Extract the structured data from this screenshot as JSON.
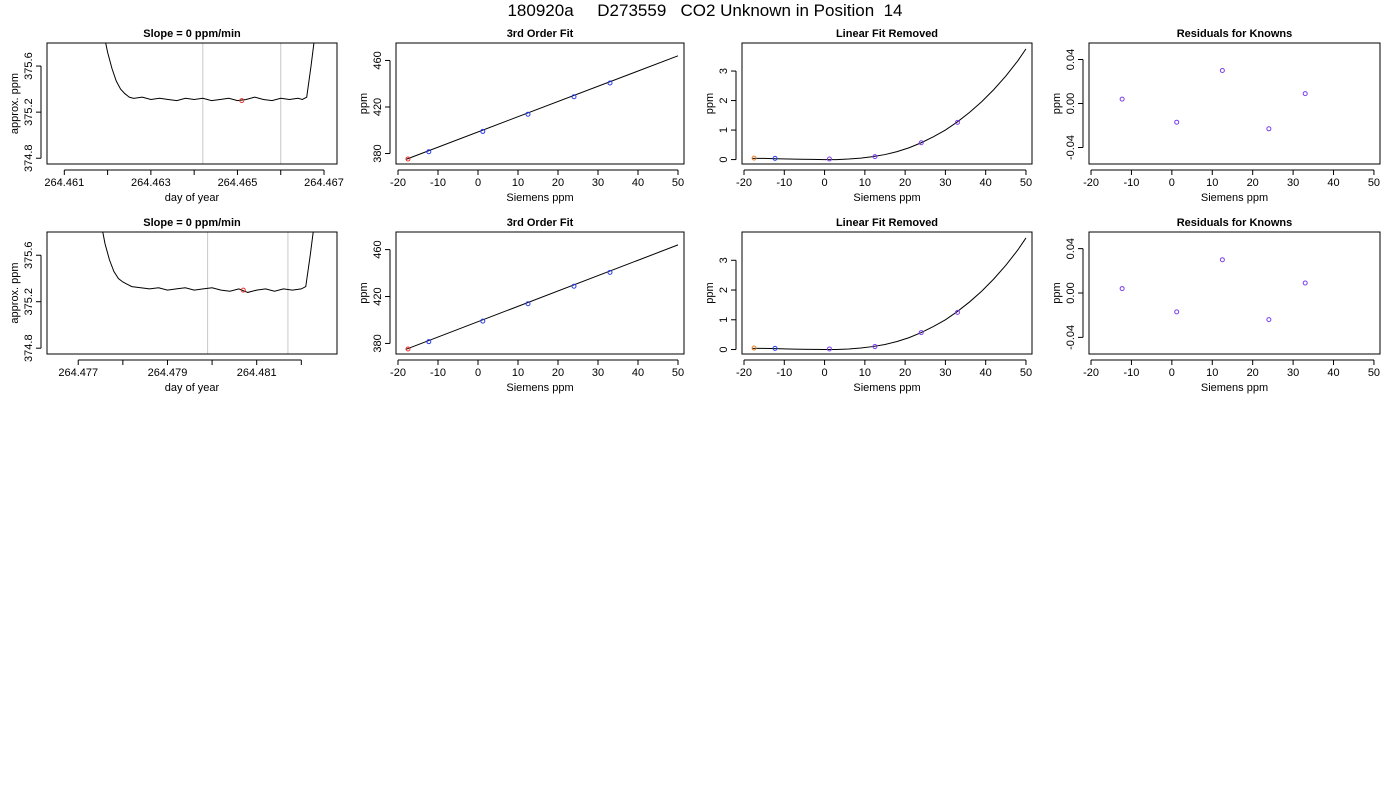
{
  "page_title": "180920a     D273559   CO2 Unknown in Position  14",
  "chart_data": [
    {
      "type": "line",
      "title": "Slope =  0  ppm/min",
      "xlabel": "day of year",
      "ylabel": "approx. ppm",
      "xlim": [
        264.4606,
        264.4673
      ],
      "ylim": [
        374.75,
        375.8
      ],
      "xticks": [
        264.461,
        264.462,
        264.463,
        264.464,
        264.465,
        264.466,
        264.467
      ],
      "xtick_labels": [
        "264.461",
        "",
        "264.463",
        "",
        "264.465",
        "",
        "264.467"
      ],
      "yticks": [
        374.8,
        375.2,
        375.6
      ],
      "ytick_labels": [
        "374.8",
        "375.2",
        "375.6"
      ],
      "vlines": [
        264.4642,
        264.466
      ],
      "x": [
        264.4619,
        264.462,
        264.4621,
        264.4622,
        264.4623,
        264.4624,
        264.4625,
        264.4626,
        264.4628,
        264.463,
        264.4632,
        264.4634,
        264.4636,
        264.4638,
        264.464,
        264.4642,
        264.4644,
        264.4646,
        264.4648,
        264.465,
        264.4652,
        264.4654,
        264.4656,
        264.4658,
        264.466,
        264.4662,
        264.4664,
        264.4665,
        264.4666,
        264.4667,
        264.4668
      ],
      "values": [
        375.9,
        375.72,
        375.58,
        375.47,
        375.4,
        375.36,
        375.33,
        375.32,
        375.33,
        375.31,
        375.32,
        375.31,
        375.3,
        375.32,
        375.31,
        375.32,
        375.3,
        375.31,
        375.32,
        375.3,
        375.31,
        375.33,
        375.31,
        375.3,
        375.32,
        375.31,
        375.32,
        375.31,
        375.33,
        375.6,
        375.9
      ],
      "marker": {
        "x": 264.4651,
        "y": 375.3,
        "color": "#e8322c"
      }
    },
    {
      "type": "line",
      "title": "3rd Order Fit",
      "xlabel": "Siemens ppm",
      "ylabel": "ppm",
      "xlim": [
        -20.5,
        51.5
      ],
      "ylim": [
        371,
        475
      ],
      "xticks": [
        -20,
        -10,
        0,
        10,
        20,
        30,
        40,
        50
      ],
      "xtick_labels": [
        "-20",
        "-10",
        "0",
        "10",
        "20",
        "30",
        "40",
        "50"
      ],
      "yticks": [
        380,
        420,
        460
      ],
      "ytick_labels": [
        "380",
        "420",
        "460"
      ],
      "curve": {
        "x": [
          -18,
          50
        ],
        "y": [
          375,
          464
        ]
      },
      "points": [
        {
          "x": -12.3,
          "y": 381.5,
          "color": "#2a3cf0"
        },
        {
          "x": 1.2,
          "y": 399.0,
          "color": "#2a3cf0"
        },
        {
          "x": 12.5,
          "y": 413.8,
          "color": "#2a3cf0"
        },
        {
          "x": 24.0,
          "y": 428.8,
          "color": "#2a3cf0"
        },
        {
          "x": 33.0,
          "y": 440.6,
          "color": "#2a3cf0"
        },
        {
          "x": -17.5,
          "y": 375.3,
          "color": "#e8322c"
        }
      ]
    },
    {
      "type": "line",
      "title": "Linear Fit Removed",
      "xlabel": "Siemens ppm",
      "ylabel": "ppm",
      "xlim": [
        -20.5,
        51.5
      ],
      "ylim": [
        -0.15,
        3.95
      ],
      "xticks": [
        -20,
        -10,
        0,
        10,
        20,
        30,
        40,
        50
      ],
      "xtick_labels": [
        "-20",
        "-10",
        "0",
        "10",
        "20",
        "30",
        "40",
        "50"
      ],
      "yticks": [
        0,
        1,
        2,
        3
      ],
      "ytick_labels": [
        "0",
        "1",
        "2",
        "3"
      ],
      "curve": {
        "x": [
          -18,
          -15,
          -12,
          -9,
          -6,
          -3,
          0,
          3,
          6,
          9,
          12,
          15,
          18,
          21,
          24,
          27,
          30,
          33,
          36,
          39,
          42,
          45,
          48,
          50
        ],
        "y": [
          0.04,
          0.04,
          0.03,
          0.02,
          0.01,
          0.005,
          0.0,
          0.0,
          0.02,
          0.05,
          0.1,
          0.17,
          0.27,
          0.4,
          0.57,
          0.77,
          1.0,
          1.28,
          1.6,
          1.96,
          2.37,
          2.83,
          3.35,
          3.75
        ]
      },
      "points": [
        {
          "x": -12.3,
          "y": 0.04,
          "color": "#2a3cf0"
        },
        {
          "x": 1.2,
          "y": 0.02,
          "color": "#7a3df0"
        },
        {
          "x": 12.5,
          "y": 0.1,
          "color": "#7a3df0"
        },
        {
          "x": 24.0,
          "y": 0.57,
          "color": "#7a3df0"
        },
        {
          "x": 33.0,
          "y": 1.26,
          "color": "#7a3df0"
        },
        {
          "x": -17.5,
          "y": 0.05,
          "color": "#e8822c"
        }
      ]
    },
    {
      "type": "scatter",
      "title": "Residuals for Knowns",
      "xlabel": "Siemens ppm",
      "ylabel": "ppm",
      "xlim": [
        -20.5,
        51.5
      ],
      "ylim": [
        -0.055,
        0.055
      ],
      "xticks": [
        -20,
        -10,
        0,
        10,
        20,
        30,
        40,
        50
      ],
      "xtick_labels": [
        "-20",
        "-10",
        "0",
        "10",
        "20",
        "30",
        "40",
        "50"
      ],
      "yticks": [
        -0.04,
        0.0,
        0.04
      ],
      "ytick_labels": [
        "-0.04",
        "0.00",
        "0.04"
      ],
      "points": [
        {
          "x": -12.3,
          "y": 0.004,
          "color": "#7a3df0"
        },
        {
          "x": 1.2,
          "y": -0.017,
          "color": "#7a3df0"
        },
        {
          "x": 12.5,
          "y": 0.03,
          "color": "#7a3df0"
        },
        {
          "x": 24.0,
          "y": -0.023,
          "color": "#7a3df0"
        },
        {
          "x": 33.0,
          "y": 0.009,
          "color": "#7a3df0"
        }
      ]
    },
    {
      "type": "line",
      "title": "Slope =  0  ppm/min",
      "xlabel": "day of year",
      "ylabel": "approx. ppm",
      "xlim": [
        264.4763,
        264.4828
      ],
      "ylim": [
        374.75,
        375.8
      ],
      "xticks": [
        264.477,
        264.478,
        264.479,
        264.48,
        264.481,
        264.482
      ],
      "xtick_labels": [
        "264.477",
        "",
        "264.479",
        "",
        "264.481",
        ""
      ],
      "yticks": [
        374.8,
        375.2,
        375.6
      ],
      "ytick_labels": [
        "374.8",
        "375.2",
        "375.6"
      ],
      "vlines": [
        264.4799,
        264.4817
      ],
      "x": [
        264.4775,
        264.4776,
        264.4777,
        264.4778,
        264.4779,
        264.478,
        264.4781,
        264.4782,
        264.4784,
        264.4786,
        264.4788,
        264.479,
        264.4792,
        264.4794,
        264.4796,
        264.4798,
        264.48,
        264.4802,
        264.4804,
        264.4806,
        264.4808,
        264.481,
        264.4812,
        264.4814,
        264.4816,
        264.4818,
        264.482,
        264.4821,
        264.4822,
        264.4823
      ],
      "values": [
        375.9,
        375.7,
        375.56,
        375.46,
        375.4,
        375.37,
        375.35,
        375.33,
        375.32,
        375.31,
        375.32,
        375.3,
        375.31,
        375.32,
        375.3,
        375.31,
        375.32,
        375.3,
        375.29,
        375.31,
        375.28,
        375.3,
        375.31,
        375.29,
        375.31,
        375.3,
        375.31,
        375.33,
        375.6,
        375.9
      ],
      "marker": {
        "x": 264.4807,
        "y": 375.3,
        "color": "#e8322c"
      }
    },
    {
      "type": "line",
      "title": "3rd Order Fit",
      "xlabel": "Siemens ppm",
      "ylabel": "ppm",
      "xlim": [
        -20.5,
        51.5
      ],
      "ylim": [
        371,
        475
      ],
      "xticks": [
        -20,
        -10,
        0,
        10,
        20,
        30,
        40,
        50
      ],
      "xtick_labels": [
        "-20",
        "-10",
        "0",
        "10",
        "20",
        "30",
        "40",
        "50"
      ],
      "yticks": [
        380,
        420,
        460
      ],
      "ytick_labels": [
        "380",
        "420",
        "460"
      ],
      "curve": {
        "x": [
          -18,
          50
        ],
        "y": [
          375,
          464
        ]
      },
      "points": [
        {
          "x": -12.3,
          "y": 381.5,
          "color": "#2a3cf0"
        },
        {
          "x": 1.2,
          "y": 399.0,
          "color": "#2a3cf0"
        },
        {
          "x": 12.5,
          "y": 413.8,
          "color": "#2a3cf0"
        },
        {
          "x": 24.0,
          "y": 428.8,
          "color": "#2a3cf0"
        },
        {
          "x": 33.0,
          "y": 440.6,
          "color": "#2a3cf0"
        },
        {
          "x": -17.5,
          "y": 375.3,
          "color": "#e8322c"
        }
      ]
    },
    {
      "type": "line",
      "title": "Linear Fit Removed",
      "xlabel": "Siemens ppm",
      "ylabel": "ppm",
      "xlim": [
        -20.5,
        51.5
      ],
      "ylim": [
        -0.15,
        3.95
      ],
      "xticks": [
        -20,
        -10,
        0,
        10,
        20,
        30,
        40,
        50
      ],
      "xtick_labels": [
        "-20",
        "-10",
        "0",
        "10",
        "20",
        "30",
        "40",
        "50"
      ],
      "yticks": [
        0,
        1,
        2,
        3
      ],
      "ytick_labels": [
        "0",
        "1",
        "2",
        "3"
      ],
      "curve": {
        "x": [
          -18,
          -15,
          -12,
          -9,
          -6,
          -3,
          0,
          3,
          6,
          9,
          12,
          15,
          18,
          21,
          24,
          27,
          30,
          33,
          36,
          39,
          42,
          45,
          48,
          50
        ],
        "y": [
          0.04,
          0.04,
          0.03,
          0.02,
          0.01,
          0.005,
          0.0,
          0.0,
          0.02,
          0.05,
          0.1,
          0.17,
          0.27,
          0.4,
          0.57,
          0.77,
          1.0,
          1.28,
          1.6,
          1.96,
          2.37,
          2.83,
          3.35,
          3.75
        ]
      },
      "points": [
        {
          "x": -12.3,
          "y": 0.04,
          "color": "#2a3cf0"
        },
        {
          "x": 1.2,
          "y": 0.02,
          "color": "#7a3df0"
        },
        {
          "x": 12.5,
          "y": 0.1,
          "color": "#7a3df0"
        },
        {
          "x": 24.0,
          "y": 0.57,
          "color": "#7a3df0"
        },
        {
          "x": 33.0,
          "y": 1.25,
          "color": "#7a3df0"
        },
        {
          "x": -17.5,
          "y": 0.05,
          "color": "#e8822c"
        }
      ]
    },
    {
      "type": "scatter",
      "title": "Residuals for Knowns",
      "xlabel": "Siemens ppm",
      "ylabel": "ppm",
      "xlim": [
        -20.5,
        51.5
      ],
      "ylim": [
        -0.055,
        0.055
      ],
      "xticks": [
        -20,
        -10,
        0,
        10,
        20,
        30,
        40,
        50
      ],
      "xtick_labels": [
        "-20",
        "-10",
        "0",
        "10",
        "20",
        "30",
        "40",
        "50"
      ],
      "yticks": [
        -0.04,
        0.0,
        0.04
      ],
      "ytick_labels": [
        "-0.04",
        "0.00",
        "0.04"
      ],
      "points": [
        {
          "x": -12.3,
          "y": 0.004,
          "color": "#7a3df0"
        },
        {
          "x": 1.2,
          "y": -0.017,
          "color": "#7a3df0"
        },
        {
          "x": 12.5,
          "y": 0.03,
          "color": "#7a3df0"
        },
        {
          "x": 24.0,
          "y": -0.024,
          "color": "#7a3df0"
        },
        {
          "x": 33.0,
          "y": 0.009,
          "color": "#7a3df0"
        }
      ]
    }
  ]
}
